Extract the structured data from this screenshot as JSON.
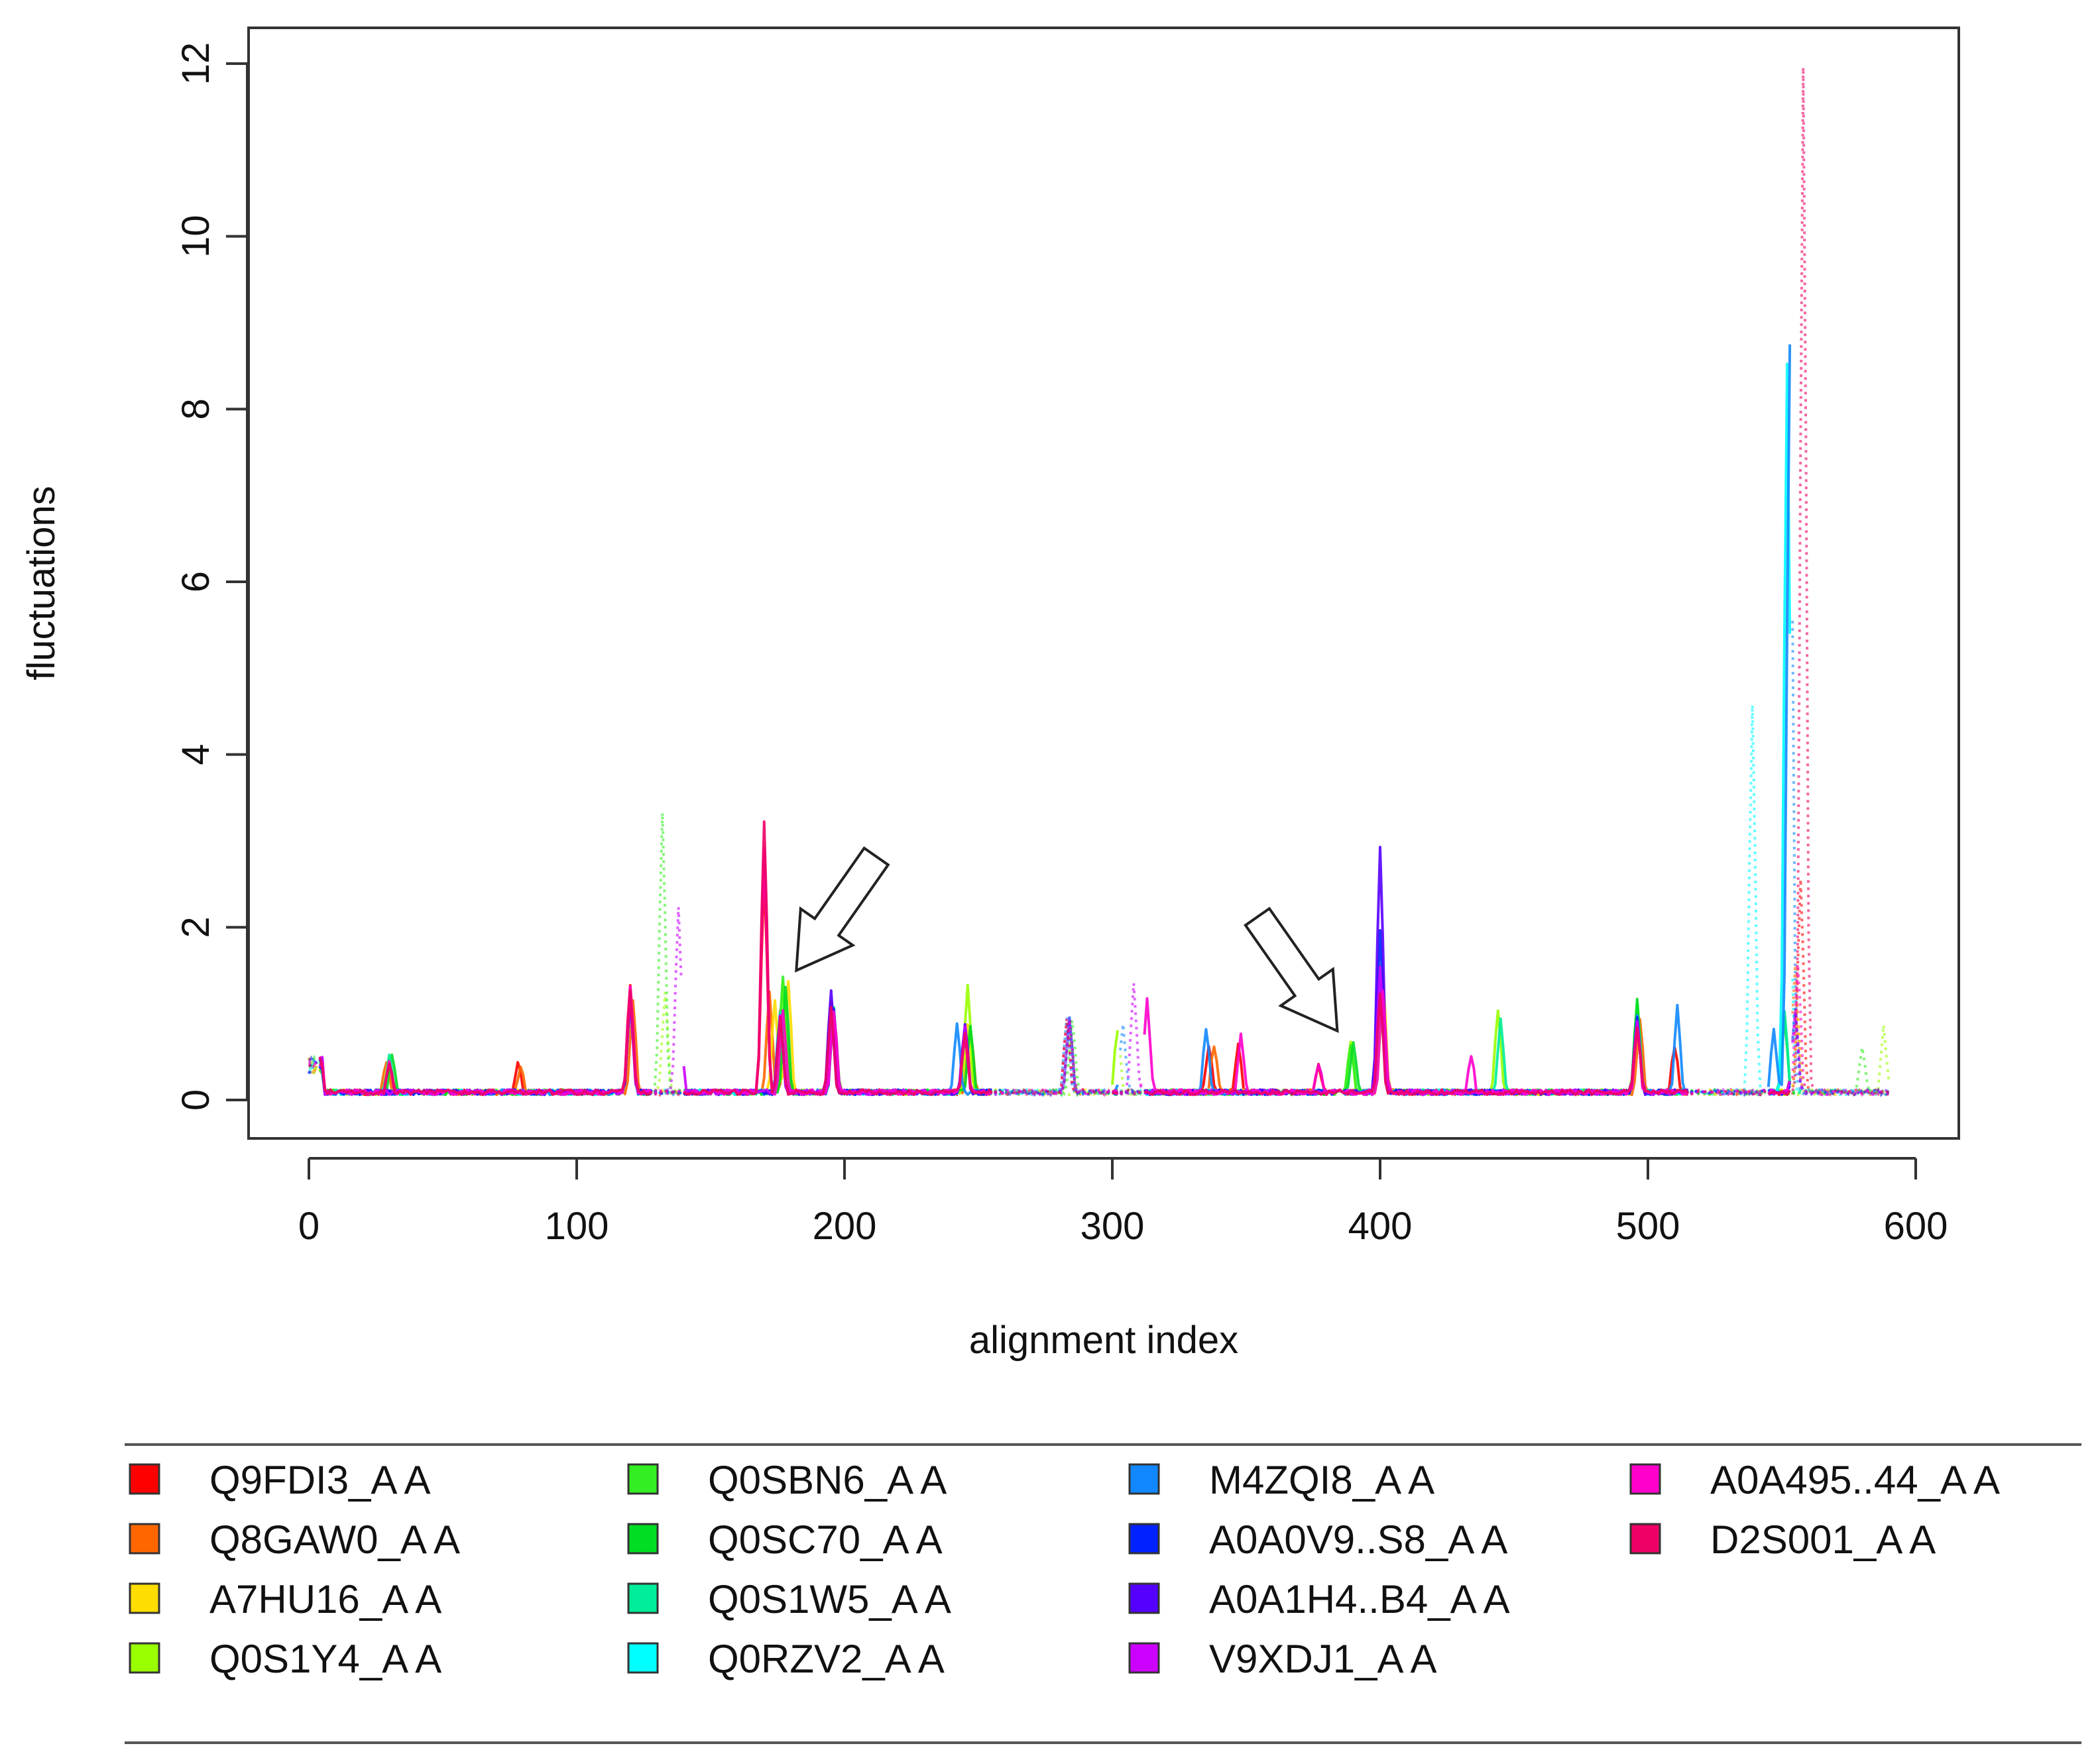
{
  "chart_data": {
    "type": "line",
    "title": "",
    "xlabel": "alignment index",
    "ylabel": "fluctuations",
    "xlim": [
      0,
      600
    ],
    "ylim": [
      0,
      12
    ],
    "x_ticks": [
      0,
      100,
      200,
      300,
      400,
      500,
      600
    ],
    "y_ticks": [
      0,
      2,
      4,
      6,
      8,
      10,
      12
    ],
    "grid": false,
    "legend_position": "bottom",
    "annotations": [
      {
        "type": "arrow",
        "points_to": [
          182,
          1.5
        ]
      },
      {
        "type": "arrow",
        "points_to": [
          384,
          0.8
        ]
      }
    ],
    "peaks": [
      {
        "name": "Q9FDI3_A A",
        "x": [
          2,
          30,
          78,
          120,
          170,
          176,
          195,
          245,
          283,
          336,
          347,
          377,
          400,
          496,
          510,
          557
        ],
        "y": [
          0.15,
          0.45,
          0.4,
          1.3,
          2.6,
          1.0,
          1.1,
          0.7,
          0.9,
          0.6,
          0.6,
          0.4,
          1.3,
          0.9,
          0.6,
          2.5
        ]
      },
      {
        "name": "Q8GAW0_A A",
        "x": [
          3,
          29,
          79,
          121,
          172,
          178,
          196,
          247,
          284,
          338,
          400,
          497,
          555
        ],
        "y": [
          0.15,
          0.4,
          0.35,
          1.1,
          1.2,
          0.9,
          1.0,
          0.8,
          0.9,
          0.6,
          1.3,
          0.9,
          1.5
        ]
      },
      {
        "name": "A7HU16_A A",
        "x": [
          2,
          30,
          120,
          174,
          179,
          196,
          246,
          284,
          401,
          496,
          556
        ],
        "y": [
          0.15,
          0.45,
          1.2,
          1.1,
          1.3,
          1.0,
          0.8,
          0.9,
          1.4,
          1.0,
          0.9
        ]
      },
      {
        "name": "Q0S1Y4_A A",
        "x": [
          2,
          120,
          133,
          177,
          196,
          246,
          302,
          389,
          401,
          444,
          496,
          588
        ],
        "y": [
          0.2,
          1.2,
          1.2,
          1.3,
          1.0,
          1.3,
          0.8,
          0.6,
          1.2,
          1.0,
          1.0,
          0.8
        ]
      },
      {
        "name": "Q0SBN6_A A",
        "x": [
          2,
          120,
          132,
          177,
          196,
          245,
          285,
          389,
          400,
          496,
          580
        ],
        "y": [
          0.2,
          1.2,
          3.3,
          1.35,
          1.0,
          0.8,
          0.9,
          0.6,
          1.5,
          1.1,
          0.6
        ]
      },
      {
        "name": "Q0SC70_A A",
        "x": [
          2,
          31,
          120,
          178,
          196,
          247,
          284,
          390,
          400,
          496,
          551
        ],
        "y": [
          0.2,
          0.5,
          1.1,
          1.3,
          1.0,
          0.8,
          0.9,
          0.6,
          1.3,
          1.1,
          0.9
        ]
      },
      {
        "name": "Q0S1W5_A A",
        "x": [
          2,
          30,
          120,
          176,
          196,
          245,
          284,
          400,
          445,
          496,
          551
        ],
        "y": [
          0.2,
          0.45,
          1.1,
          1.0,
          1.0,
          0.8,
          0.9,
          1.4,
          0.9,
          0.9,
          1.0
        ]
      },
      {
        "name": "Q0RZV2_A A",
        "x": [
          2,
          120,
          176,
          196,
          245,
          284,
          400,
          496,
          539,
          552
        ],
        "y": [
          0.2,
          1.1,
          0.9,
          1.0,
          0.8,
          0.9,
          1.4,
          0.9,
          4.5,
          8.5
        ]
      },
      {
        "name": "M4ZQI8_A A",
        "x": [
          2,
          120,
          176,
          196,
          242,
          283,
          304,
          335,
          400,
          496,
          511,
          547,
          553
        ],
        "y": [
          0.2,
          1.1,
          0.9,
          1.0,
          0.85,
          0.9,
          0.8,
          0.8,
          1.4,
          0.9,
          1.05,
          0.8,
          8.7
        ]
      },
      {
        "name": "A0A0V9..S8_A A",
        "x": [
          2,
          120,
          176,
          196,
          245,
          284,
          400,
          496,
          555
        ],
        "y": [
          0.2,
          1.1,
          0.9,
          1.0,
          0.8,
          0.9,
          1.95,
          0.9,
          1.0
        ]
      },
      {
        "name": "A0A1H4..B4_A A",
        "x": [
          2,
          120,
          176,
          195,
          245,
          284,
          400,
          496,
          555
        ],
        "y": [
          0.2,
          1.1,
          0.9,
          1.2,
          0.8,
          0.9,
          2.9,
          0.9,
          1.0
        ]
      },
      {
        "name": "V9XDJ1_A A",
        "x": [
          2,
          120,
          138,
          176,
          196,
          245,
          284,
          308,
          400,
          496,
          555
        ],
        "y": [
          0.2,
          1.1,
          2.2,
          0.9,
          1.0,
          0.8,
          0.9,
          1.3,
          1.5,
          0.9,
          1.0
        ]
      },
      {
        "name": "A0A495..44_A A",
        "x": [
          2,
          30,
          120,
          170,
          177,
          196,
          245,
          284,
          313,
          348,
          377,
          401,
          434,
          496,
          556
        ],
        "y": [
          0.2,
          0.4,
          1.3,
          2.9,
          1.0,
          1.0,
          0.7,
          0.9,
          1.1,
          0.7,
          0.4,
          1.2,
          0.5,
          0.8,
          1.5
        ]
      },
      {
        "name": "D2S001_A A",
        "x": [
          2,
          30,
          120,
          170,
          176,
          195,
          245,
          283,
          400,
          496,
          558
        ],
        "y": [
          0.2,
          0.4,
          1.2,
          3.2,
          0.9,
          1.0,
          0.7,
          0.9,
          1.2,
          0.8,
          11.9
        ]
      }
    ]
  },
  "legend": {
    "items": [
      {
        "label": "Q9FDI3_A A",
        "color": "#ff0000"
      },
      {
        "label": "Q8GAW0_A A",
        "color": "#ff6600"
      },
      {
        "label": "A7HU16_A A",
        "color": "#ffdd00"
      },
      {
        "label": "Q0S1Y4_A A",
        "color": "#99ff00"
      },
      {
        "label": "Q0SBN6_A A",
        "color": "#33ee22"
      },
      {
        "label": "Q0SC70_A A",
        "color": "#00dd22"
      },
      {
        "label": "Q0S1W5_A A",
        "color": "#00ee99"
      },
      {
        "label": "Q0RZV2_A A",
        "color": "#00ffff"
      },
      {
        "label": "M4ZQI8_A A",
        "color": "#1188ff"
      },
      {
        "label": "A0A0V9..S8_A A",
        "color": "#0022ff"
      },
      {
        "label": "A0A1H4..B4_A A",
        "color": "#5500ff"
      },
      {
        "label": "V9XDJ1_A A",
        "color": "#cc00ff"
      },
      {
        "label": "A0A495..44_A A",
        "color": "#ff00cc"
      },
      {
        "label": "D2S001_A A",
        "color": "#ee0066"
      }
    ]
  }
}
